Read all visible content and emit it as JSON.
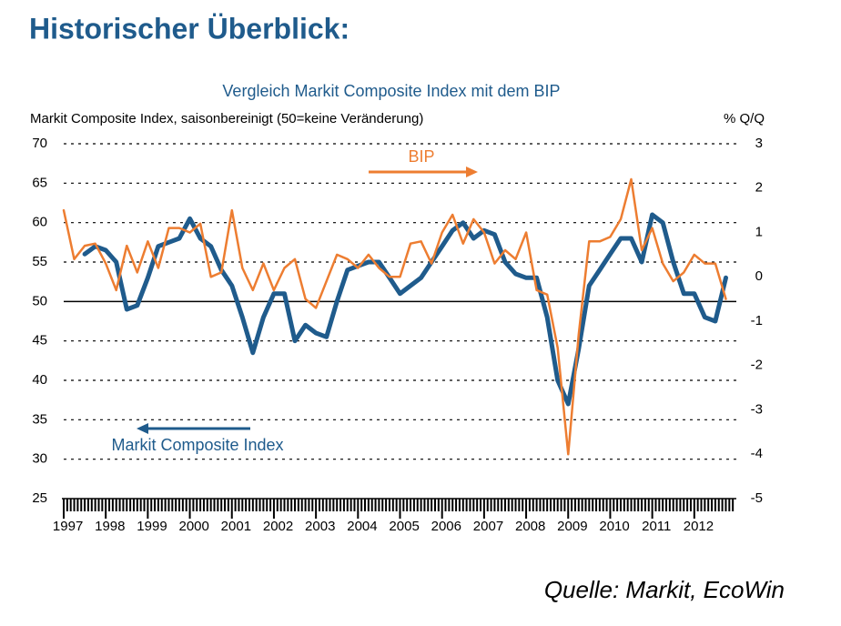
{
  "header": {
    "title": "Historischer Überblick:"
  },
  "chart_data": {
    "type": "line",
    "title": "Vergleich Markit Composite Index mit dem BIP",
    "y_label": "Markit Composite Index, saisonbereinigt (50=keine Veränderung)",
    "y2_label": "% Q/Q",
    "x": [
      1997,
      1997.25,
      1997.5,
      1997.75,
      1998,
      1998.25,
      1998.5,
      1998.75,
      1999,
      1999.25,
      1999.5,
      1999.75,
      2000,
      2000.25,
      2000.5,
      2000.75,
      2001,
      2001.25,
      2001.5,
      2001.75,
      2002,
      2002.25,
      2002.5,
      2002.75,
      2003,
      2003.25,
      2003.5,
      2003.75,
      2004,
      2004.25,
      2004.5,
      2004.75,
      2005,
      2005.25,
      2005.5,
      2005.75,
      2006,
      2006.25,
      2006.5,
      2006.75,
      2007,
      2007.25,
      2007.5,
      2007.75,
      2008,
      2008.25,
      2008.5,
      2008.75,
      2009,
      2009.25,
      2009.5,
      2009.75,
      2010,
      2010.25,
      2010.5,
      2010.75,
      2011,
      2011.25,
      2011.5,
      2011.75,
      2012,
      2012.25,
      2012.5,
      2012.75
    ],
    "xlim": [
      1997,
      2013
    ],
    "xticks": [
      1997,
      1998,
      1999,
      2000,
      2001,
      2002,
      2003,
      2004,
      2005,
      2006,
      2007,
      2008,
      2009,
      2010,
      2011,
      2012
    ],
    "ylim": [
      25,
      70
    ],
    "yticks": [
      25,
      30,
      35,
      40,
      45,
      50,
      55,
      60,
      65,
      70
    ],
    "y2lim": [
      -5,
      3
    ],
    "y2ticks": [
      -5,
      -4,
      -3,
      -2,
      -1,
      0,
      1,
      2,
      3
    ],
    "grid": true,
    "reference_line": 50,
    "series": [
      {
        "name": "Markit Composite Index",
        "color": "#1f5b8c",
        "values": [
          null,
          null,
          56,
          57,
          56.5,
          55,
          49,
          49.5,
          53,
          57,
          57.5,
          58,
          60.5,
          58,
          57,
          54,
          52,
          48,
          43.5,
          48,
          51,
          51,
          45,
          47,
          46,
          45.5,
          50,
          54,
          54.5,
          55,
          55,
          53,
          51,
          52,
          53,
          55,
          57,
          59,
          60,
          58,
          59,
          58.5,
          55,
          53.5,
          53,
          53,
          48,
          40,
          37,
          44,
          52,
          54,
          56,
          58,
          58,
          55,
          61,
          60,
          55,
          51,
          51,
          48,
          47.5,
          53
        ]
      },
      {
        "name": "BIP",
        "color": "#ed7d31",
        "axis": "y2",
        "values": [
          1.5,
          0.4,
          0.7,
          0.75,
          0.3,
          -0.3,
          0.7,
          0.1,
          0.8,
          0.2,
          1.1,
          1.1,
          1.0,
          1.2,
          0,
          0.1,
          1.5,
          0.2,
          -0.3,
          0.3,
          -0.3,
          0.2,
          0.4,
          -0.5,
          -0.7,
          -0.1,
          0.5,
          0.4,
          0.2,
          0.5,
          0.2,
          0,
          0,
          0.75,
          0.8,
          0.3,
          1.0,
          1.4,
          0.75,
          1.3,
          1.0,
          0.3,
          0.6,
          0.4,
          1.0,
          -0.3,
          -0.4,
          -1.6,
          -4.0,
          -1.3,
          0.8,
          0.8,
          0.9,
          1.3,
          2.2,
          0.6,
          1.1,
          0.3,
          -0.1,
          0.1,
          0.5,
          0.3,
          0.3,
          -0.5
        ]
      }
    ]
  },
  "source": "Quelle: Markit, EcoWin"
}
